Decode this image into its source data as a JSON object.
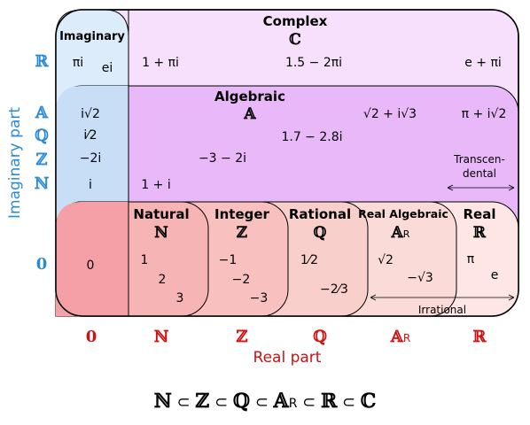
{
  "sets": {
    "complex": {
      "title": "Complex",
      "symbol": "ℂ"
    },
    "imaginary": {
      "title": "Imaginary"
    },
    "algebraic": {
      "title": "Algebraic",
      "symbol": "𝔸"
    },
    "natural": {
      "title": "Natural",
      "symbol": "ℕ"
    },
    "integer": {
      "title": "Integer",
      "symbol": "ℤ"
    },
    "rational": {
      "title": "Rational",
      "symbol": "ℚ"
    },
    "real_algebraic": {
      "title": "Real Algebraic",
      "symbol": "𝔸",
      "subscript": "R"
    },
    "real": {
      "title": "Real",
      "symbol": "ℝ"
    },
    "transcendental": "Transcen-\ndental",
    "irrational": "Irrational"
  },
  "examples": {
    "imaginary_real": [
      "πi",
      "ei"
    ],
    "complex": [
      "1 + πi",
      "1.5 − 2πi",
      "e + πi"
    ],
    "imaginary_algebraic": [
      "i√2",
      "i⁄2",
      "−2i",
      "i"
    ],
    "algebraic": [
      "√2 + i√3",
      "1.7 − 2.8i",
      "−3 − 2i",
      "1 + i"
    ],
    "transcendental": [
      "π + i√2"
    ],
    "zero": [
      "0"
    ],
    "natural": [
      "1",
      "2",
      "3"
    ],
    "integer": [
      "−1",
      "−2",
      "−3"
    ],
    "rational": [
      "1⁄2",
      "−2⁄3"
    ],
    "real_algebraic": [
      "√2",
      "−√3"
    ],
    "real": [
      "π",
      "e"
    ]
  },
  "axes": {
    "y_label": "Imaginary part",
    "x_label": "Real part",
    "y_symbols": [
      "ℝ",
      "𝔸",
      "ℚ",
      "ℤ",
      "ℕ",
      "0"
    ],
    "x_symbols": [
      "0",
      "ℕ",
      "ℤ",
      "ℚ",
      "𝔸",
      "ℝ"
    ],
    "x_symbol_subscript": "R"
  },
  "chain": {
    "symbols": [
      "ℕ",
      "ℤ",
      "ℚ",
      "𝔸",
      "ℝ",
      "ℂ"
    ],
    "subscript": "R",
    "operator": "⊂"
  },
  "colors": {
    "complex_fill": "#f6e0fb",
    "imaginary_fill": "#dcecfb",
    "algebraic_fill": "#e8b8f8",
    "imag_alg_fill": "#c8def6",
    "zero_fill": "#f4a0a6",
    "natural_fill": "#f7b4b5",
    "integer_fill": "#f8c1c0",
    "rational_fill": "#f9cfcc",
    "real_alg_fill": "#fbdbd8",
    "real_fill": "#fde6e3",
    "y_axis": "#2a8ad6",
    "x_axis": "#cc1111"
  }
}
